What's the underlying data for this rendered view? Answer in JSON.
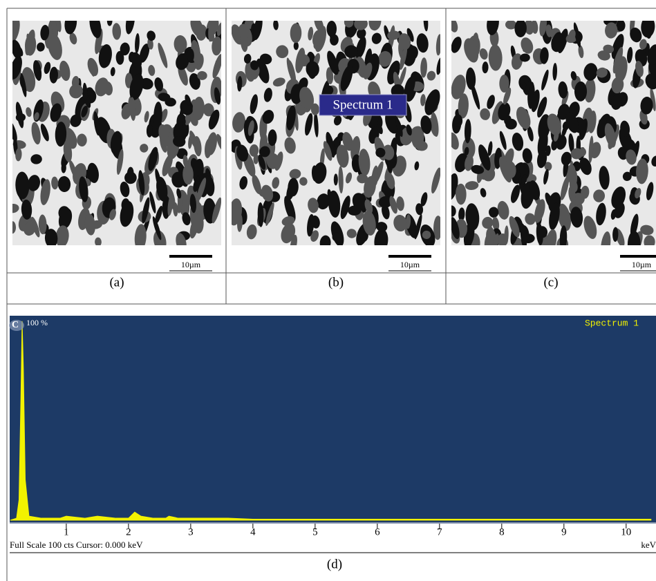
{
  "panels": [
    {
      "label": "(a)",
      "scale_bar": "10µm"
    },
    {
      "label": "(b)",
      "scale_bar": "10µm",
      "annotation": "Spectrum 1"
    },
    {
      "label": "(c)",
      "scale_bar": "10µm"
    }
  ],
  "chart_data": {
    "type": "line",
    "title": "Spectrum 1",
    "label": "(d)",
    "peak_label": "C",
    "peak_note": "100 %",
    "footer": "Full Scale 100 cts  Cursor: 0.000 keV",
    "x_unit": "keV",
    "color": "#f2f200",
    "x": [
      0.1,
      0.2,
      0.24,
      0.27,
      0.29,
      0.31,
      0.34,
      0.4,
      0.6,
      0.9,
      1.0,
      1.3,
      1.5,
      1.8,
      2.0,
      2.1,
      2.2,
      2.4,
      2.6,
      2.65,
      2.8,
      3.2,
      3.6,
      4.0,
      5.0,
      6.0,
      7.0,
      8.0,
      9.0,
      10.0,
      10.4
    ],
    "values": [
      0,
      1,
      10,
      60,
      98,
      75,
      20,
      2,
      1,
      1,
      2,
      1,
      2,
      1,
      1,
      4,
      2,
      1,
      1,
      2,
      1,
      1,
      1,
      0.5,
      0.5,
      0.5,
      0.5,
      0.5,
      0.5,
      0.5,
      0.5
    ],
    "xlim": [
      0.09,
      10.48
    ],
    "ylim": [
      0,
      100
    ],
    "xticks": [
      1,
      2,
      3,
      4,
      5,
      6,
      7,
      8,
      9,
      10
    ]
  }
}
